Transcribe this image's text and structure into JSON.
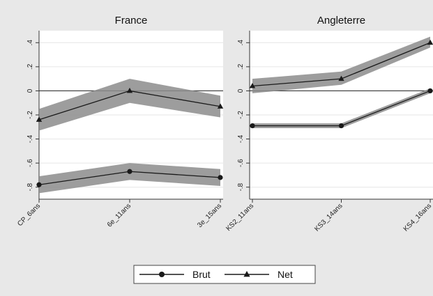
{
  "chart_data": [
    {
      "type": "line",
      "title": "France",
      "categories": [
        "CP_6ans",
        "6e_11ans",
        "3e_15ans"
      ],
      "ylim": [
        -0.9,
        0.5
      ],
      "yticks": [
        -0.8,
        -0.6,
        -0.4,
        -0.2,
        0,
        0.2,
        0.4
      ],
      "ytick_labels": [
        "-.8",
        "-.6",
        "-.4",
        "-.2",
        "0",
        ".2",
        ".4"
      ],
      "reference_line": 0,
      "grid": true,
      "series": [
        {
          "name": "Brut",
          "marker": "circle",
          "values": [
            -0.78,
            -0.67,
            -0.72
          ],
          "ci_low": [
            -0.85,
            -0.74,
            -0.79
          ],
          "ci_high": [
            -0.71,
            -0.6,
            -0.65
          ]
        },
        {
          "name": "Net",
          "marker": "triangle",
          "values": [
            -0.24,
            0.0,
            -0.13
          ],
          "ci_low": [
            -0.33,
            -0.1,
            -0.22
          ],
          "ci_high": [
            -0.15,
            0.1,
            -0.04
          ]
        }
      ]
    },
    {
      "type": "line",
      "title": "Angleterre",
      "categories": [
        "KS2_11ans",
        "KS3_14ans",
        "KS4_16ans"
      ],
      "ylim": [
        -0.9,
        0.5
      ],
      "yticks": [
        -0.8,
        -0.6,
        -0.4,
        -0.2,
        0,
        0.2,
        0.4
      ],
      "ytick_labels": [
        "-.8",
        "-.6",
        "-.4",
        "-.2",
        "0",
        ".2",
        ".4"
      ],
      "reference_line": 0,
      "grid": true,
      "series": [
        {
          "name": "Brut",
          "marker": "circle",
          "values": [
            -0.29,
            -0.29,
            0.0
          ],
          "ci_low": [
            -0.31,
            -0.31,
            -0.02
          ],
          "ci_high": [
            -0.27,
            -0.27,
            0.02
          ]
        },
        {
          "name": "Net",
          "marker": "triangle",
          "values": [
            0.04,
            0.1,
            0.4
          ],
          "ci_low": [
            -0.02,
            0.05,
            0.36
          ],
          "ci_high": [
            0.1,
            0.16,
            0.45
          ]
        }
      ]
    }
  ],
  "legend": {
    "placement": "bottom",
    "items": [
      {
        "label": "Brut",
        "marker": "circle"
      },
      {
        "label": "Net",
        "marker": "triangle"
      }
    ]
  },
  "colors": {
    "background": "#e8e8e8",
    "plot_bg": "#ffffff",
    "band": "#8c8c8c",
    "line": "#1a1a1a",
    "grid": "#e6e6e6"
  }
}
